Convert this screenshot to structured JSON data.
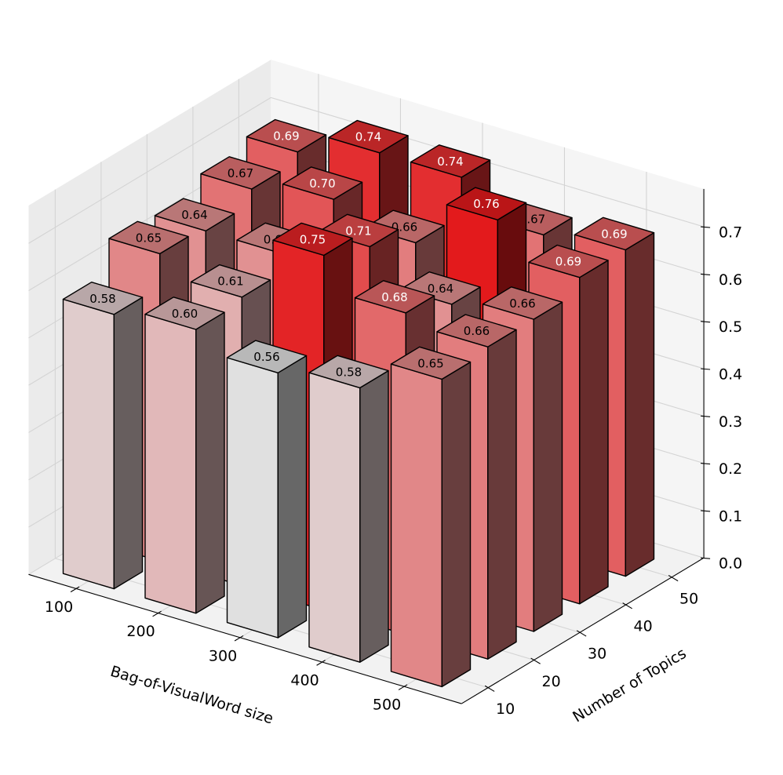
{
  "chart_data": {
    "type": "bar3d",
    "x_label": "Bag-of-VisualWord size",
    "y_label": "Number of Topics",
    "x_categories": [
      "100",
      "200",
      "300",
      "400",
      "500"
    ],
    "y_categories": [
      "10",
      "20",
      "30",
      "40",
      "50"
    ],
    "z_ticks": [
      "0.0",
      "0.1",
      "0.2",
      "0.3",
      "0.4",
      "0.5",
      "0.6",
      "0.7"
    ],
    "zlim": [
      0,
      0.78
    ],
    "color_scale": {
      "low": "#e0e0e0",
      "high": "#e31a1c",
      "min": 0.56,
      "max": 0.76
    },
    "values": [
      {
        "x": "100",
        "y": "10",
        "z": 0.58
      },
      {
        "x": "200",
        "y": "10",
        "z": 0.6
      },
      {
        "x": "300",
        "y": "10",
        "z": 0.56
      },
      {
        "x": "400",
        "y": "10",
        "z": 0.58
      },
      {
        "x": "500",
        "y": "10",
        "z": 0.65
      },
      {
        "x": "100",
        "y": "20",
        "z": 0.65
      },
      {
        "x": "200",
        "y": "20",
        "z": 0.61
      },
      {
        "x": "300",
        "y": "20",
        "z": 0.75
      },
      {
        "x": "400",
        "y": "20",
        "z": 0.68
      },
      {
        "x": "500",
        "y": "20",
        "z": 0.66
      },
      {
        "x": "100",
        "y": "30",
        "z": 0.64
      },
      {
        "x": "200",
        "y": "30",
        "z": 0.64
      },
      {
        "x": "300",
        "y": "30",
        "z": 0.71
      },
      {
        "x": "400",
        "y": "30",
        "z": 0.64
      },
      {
        "x": "500",
        "y": "30",
        "z": 0.66
      },
      {
        "x": "100",
        "y": "40",
        "z": 0.67
      },
      {
        "x": "200",
        "y": "40",
        "z": 0.7
      },
      {
        "x": "300",
        "y": "40",
        "z": 0.66
      },
      {
        "x": "400",
        "y": "40",
        "z": 0.76
      },
      {
        "x": "500",
        "y": "40",
        "z": 0.69
      },
      {
        "x": "100",
        "y": "50",
        "z": 0.69
      },
      {
        "x": "200",
        "y": "50",
        "z": 0.74
      },
      {
        "x": "300",
        "y": "50",
        "z": 0.74
      },
      {
        "x": "400",
        "y": "50",
        "z": 0.67
      },
      {
        "x": "500",
        "y": "50",
        "z": 0.69
      }
    ],
    "grid": true
  }
}
